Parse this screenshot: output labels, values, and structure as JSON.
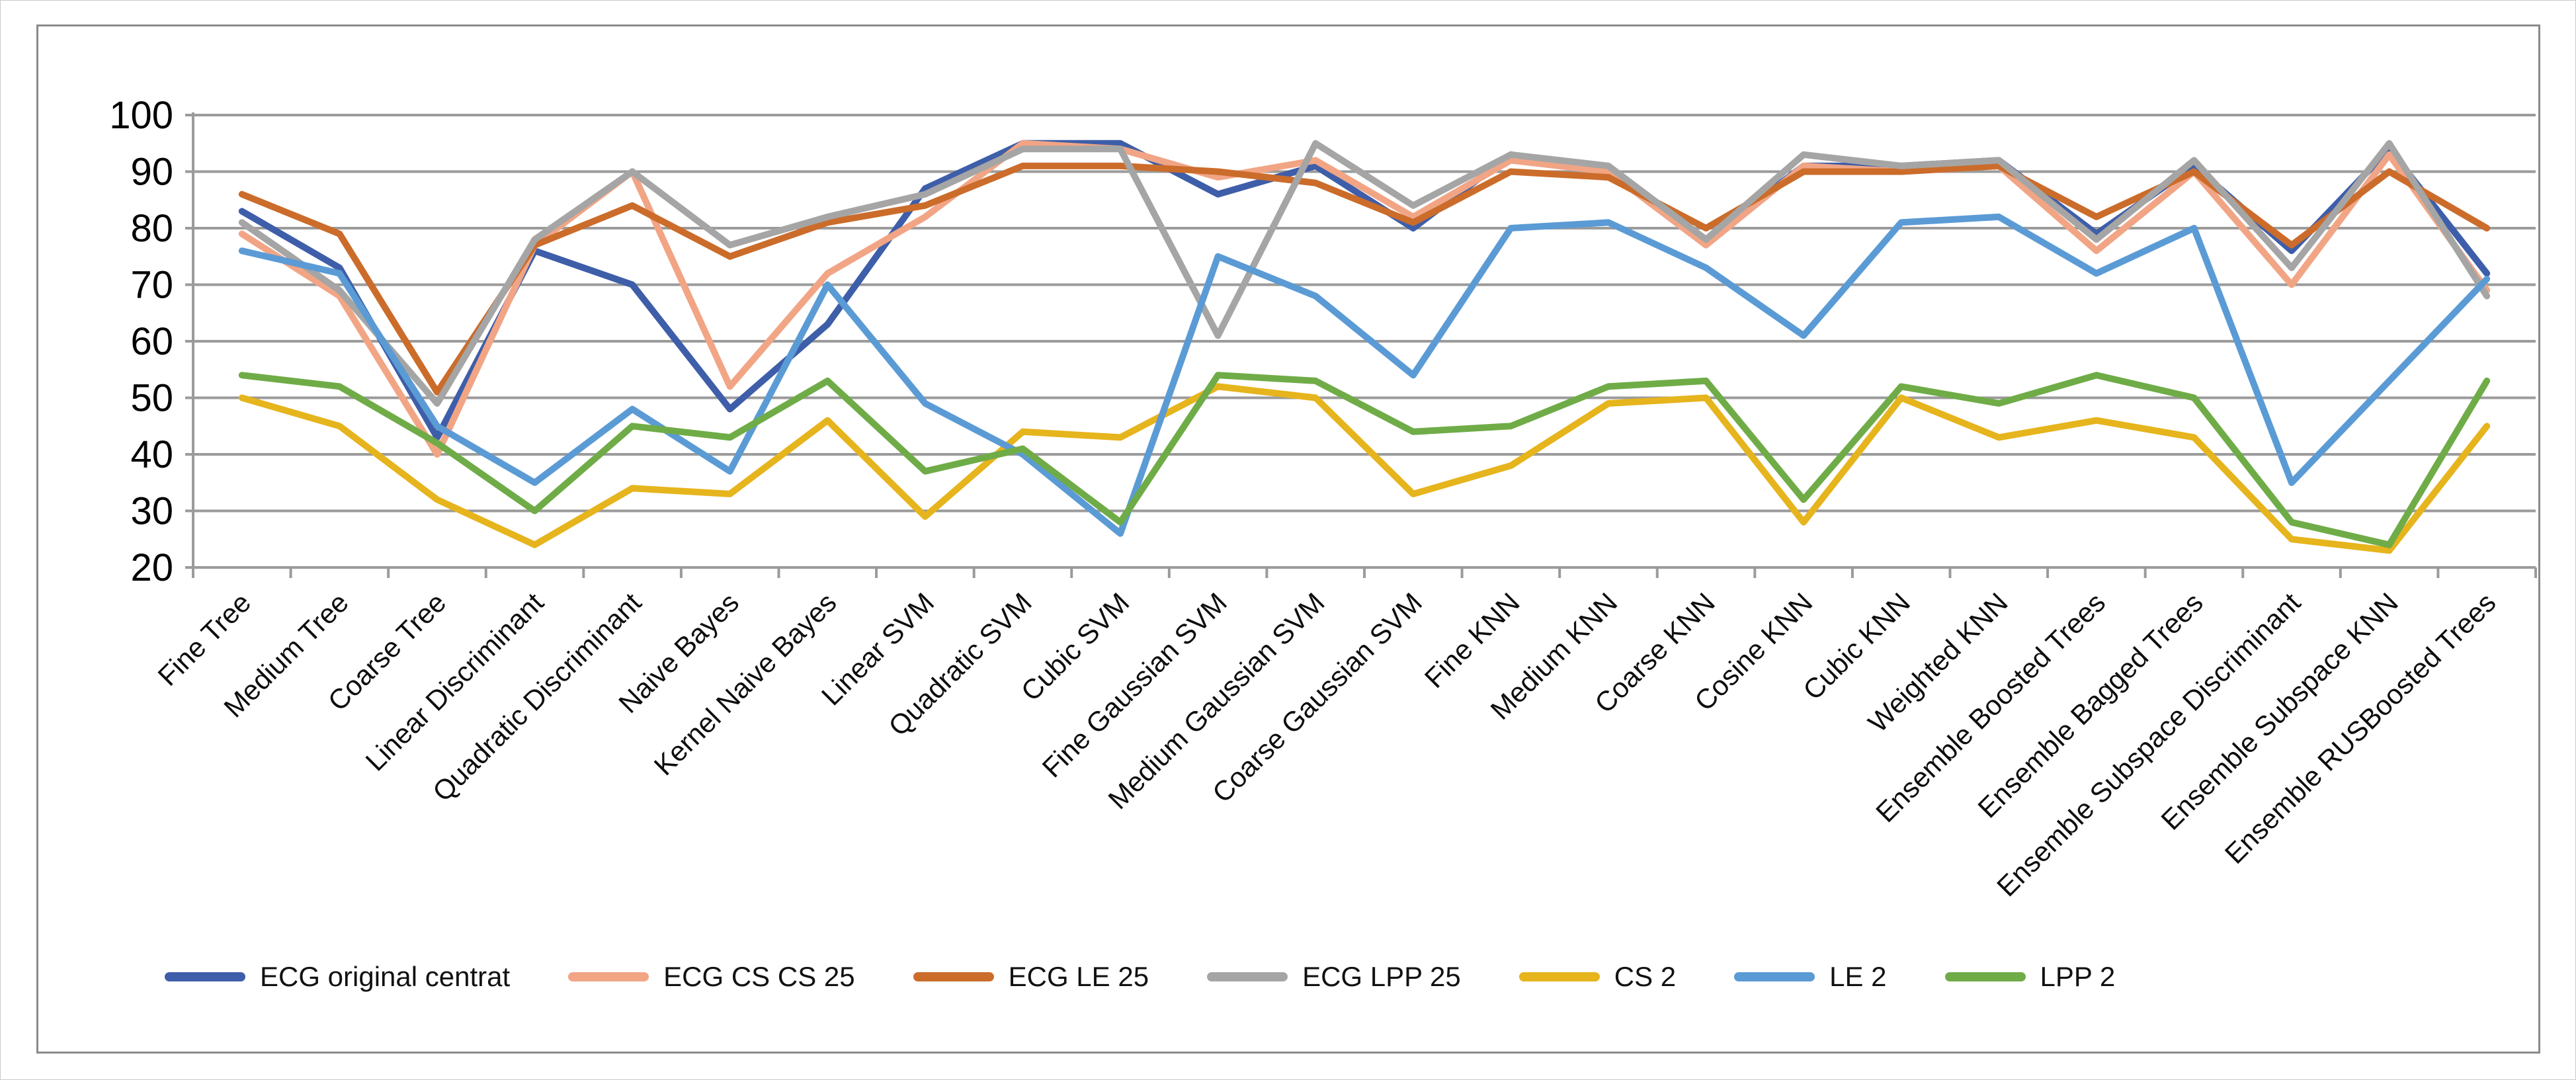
{
  "chart_data": {
    "type": "line",
    "title": "",
    "xlabel": "",
    "ylabel": "",
    "ylim": [
      20,
      100
    ],
    "yticks": [
      20,
      30,
      40,
      50,
      60,
      70,
      80,
      90,
      100
    ],
    "grid": true,
    "legend_position": "bottom",
    "categories": [
      "Fine Tree",
      "Medium Tree",
      "Coarse Tree",
      "Linear Discriminant",
      "Quadratic Discriminant",
      "Naive Bayes",
      "Kernel Naive Bayes",
      "Linear SVM",
      "Quadratic SVM",
      "Cubic SVM",
      "Fine Gaussian SVM",
      "Medium Gaussian SVM",
      "Coarse Gaussian SVM",
      "Fine KNN",
      "Medium KNN",
      "Coarse KNN",
      "Cosine KNN",
      "Cubic KNN",
      "Weighted KNN",
      "Ensemble Boosted Trees",
      "Ensemble Bagged Trees",
      "Ensemble Subspace Discriminant",
      "Ensemble Subspace KNN",
      "Ensemble RUSBoosted Trees"
    ],
    "series": [
      {
        "name": "ECG original centrat",
        "color": "#3E5EA9",
        "values": [
          83,
          73,
          43,
          76,
          70,
          48,
          63,
          87,
          95,
          95,
          86,
          91,
          80,
          93,
          90,
          78,
          91,
          91,
          92,
          79,
          91,
          76,
          94,
          72
        ]
      },
      {
        "name": "ECG CS CS 25",
        "color": "#F1A585",
        "values": [
          79,
          68,
          40,
          77,
          90,
          52,
          72,
          82,
          95,
          94,
          89,
          92,
          82,
          92,
          90,
          77,
          91,
          90,
          91,
          76,
          90,
          70,
          93,
          69
        ]
      },
      {
        "name": "ECG LE 25",
        "color": "#CB6C2B",
        "values": [
          86,
          79,
          51,
          77,
          84,
          75,
          81,
          84,
          91,
          91,
          90,
          88,
          81,
          90,
          89,
          80,
          90,
          90,
          91,
          82,
          90,
          77,
          90,
          80
        ]
      },
      {
        "name": "ECG LPP 25",
        "color": "#A5A5A5",
        "values": [
          81,
          69,
          49,
          78,
          90,
          77,
          82,
          86,
          94,
          94,
          61,
          95,
          84,
          93,
          91,
          78,
          93,
          91,
          92,
          78,
          92,
          73,
          95,
          68
        ]
      },
      {
        "name": "CS 2",
        "color": "#E6B41C",
        "values": [
          50,
          45,
          32,
          24,
          34,
          33,
          46,
          29,
          44,
          43,
          52,
          50,
          33,
          38,
          49,
          50,
          28,
          50,
          43,
          46,
          43,
          25,
          23,
          45
        ]
      },
      {
        "name": "LE 2",
        "color": "#5B9BD5",
        "values": [
          76,
          72,
          45,
          35,
          48,
          37,
          70,
          49,
          40,
          26,
          75,
          68,
          54,
          80,
          81,
          73,
          61,
          81,
          82,
          72,
          80,
          35,
          53,
          71
        ]
      },
      {
        "name": "LPP 2",
        "color": "#6FAC47",
        "values": [
          54,
          52,
          42,
          30,
          45,
          43,
          53,
          37,
          41,
          28,
          54,
          53,
          44,
          45,
          52,
          53,
          32,
          52,
          49,
          54,
          50,
          28,
          24,
          53
        ]
      }
    ]
  },
  "layout_labels": {
    "chart_name": "classifier-accuracy-line-chart"
  }
}
